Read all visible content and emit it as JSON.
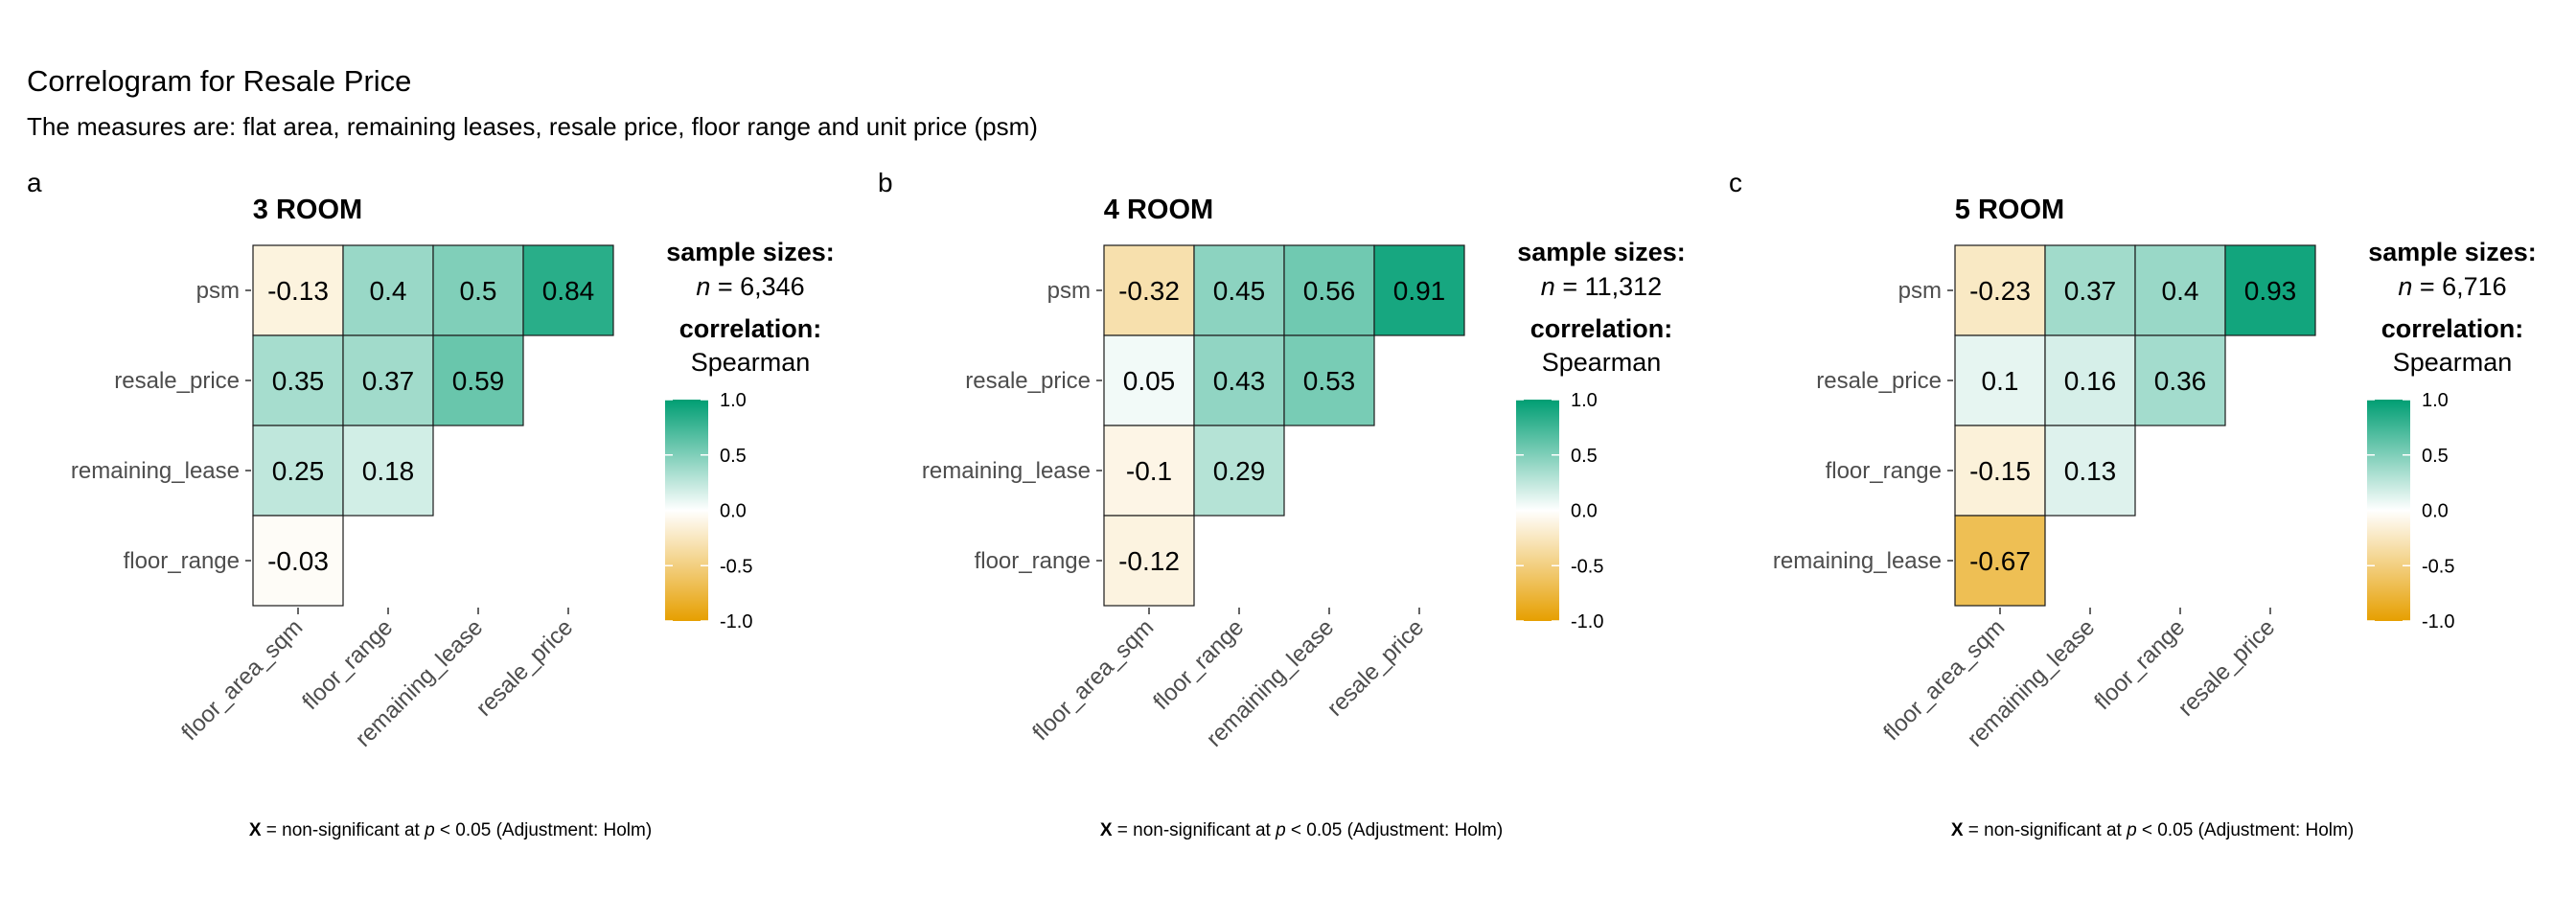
{
  "title": "Correlogram for Resale Price",
  "subtitle": "The measures are: flat area, remaining leases, resale price, floor range and unit price (psm)",
  "colors": {
    "low": "#e69f00",
    "mid": "#ffffff",
    "high": "#009e73"
  },
  "legend_ticks": [
    "1.0",
    "0.5",
    "0.0",
    "-0.5",
    "-1.0"
  ],
  "caption": {
    "bold": "X",
    "before_p": " = non-significant at ",
    "p": "p",
    "after_p": " < 0.05 (Adjustment: Holm)"
  },
  "chart_data": [
    {
      "type": "heatmap",
      "tag": "a",
      "title": "3 ROOM",
      "sample_label": "sample sizes:",
      "n_label": "n",
      "n_value": "= 6,346",
      "corr_label": "correlation:",
      "corr_method": "Spearman",
      "x_categories": [
        "floor_area_sqm",
        "floor_range",
        "remaining_lease",
        "resale_price"
      ],
      "y_categories": [
        "psm",
        "resale_price",
        "remaining_lease",
        "floor_range"
      ],
      "values": [
        [
          -0.13,
          0.4,
          0.5,
          0.84
        ],
        [
          0.35,
          0.37,
          0.59,
          null
        ],
        [
          0.25,
          0.18,
          null,
          null
        ],
        [
          -0.03,
          null,
          null,
          null
        ]
      ],
      "labels": [
        [
          "-0.13",
          "0.4",
          "0.5",
          "0.84"
        ],
        [
          "0.35",
          "0.37",
          "0.59",
          null
        ],
        [
          "0.25",
          "0.18",
          null,
          null
        ],
        [
          "-0.03",
          null,
          null,
          null
        ]
      ]
    },
    {
      "type": "heatmap",
      "tag": "b",
      "title": "4 ROOM",
      "sample_label": "sample sizes:",
      "n_label": "n",
      "n_value": "= 11,312",
      "corr_label": "correlation:",
      "corr_method": "Spearman",
      "x_categories": [
        "floor_area_sqm",
        "floor_range",
        "remaining_lease",
        "resale_price"
      ],
      "y_categories": [
        "psm",
        "resale_price",
        "remaining_lease",
        "floor_range"
      ],
      "values": [
        [
          -0.32,
          0.45,
          0.56,
          0.91
        ],
        [
          0.05,
          0.43,
          0.53,
          null
        ],
        [
          -0.1,
          0.29,
          null,
          null
        ],
        [
          -0.12,
          null,
          null,
          null
        ]
      ],
      "labels": [
        [
          "-0.32",
          "0.45",
          "0.56",
          "0.91"
        ],
        [
          "0.05",
          "0.43",
          "0.53",
          null
        ],
        [
          "-0.1",
          "0.29",
          null,
          null
        ],
        [
          "-0.12",
          null,
          null,
          null
        ]
      ]
    },
    {
      "type": "heatmap",
      "tag": "c",
      "title": "5 ROOM",
      "sample_label": "sample sizes:",
      "n_label": "n",
      "n_value": "= 6,716",
      "corr_label": "correlation:",
      "corr_method": "Spearman",
      "x_categories": [
        "floor_area_sqm",
        "remaining_lease",
        "floor_range",
        "resale_price"
      ],
      "y_categories": [
        "psm",
        "resale_price",
        "floor_range",
        "remaining_lease"
      ],
      "values": [
        [
          -0.23,
          0.37,
          0.4,
          0.93
        ],
        [
          0.1,
          0.16,
          0.36,
          null
        ],
        [
          -0.15,
          0.13,
          null,
          null
        ],
        [
          -0.67,
          null,
          null,
          null
        ]
      ],
      "labels": [
        [
          "-0.23",
          "0.37",
          "0.4",
          "0.93"
        ],
        [
          "0.1",
          "0.16",
          "0.36",
          null
        ],
        [
          "-0.15",
          "0.13",
          null,
          null
        ],
        [
          "-0.67",
          null,
          null,
          null
        ]
      ]
    }
  ]
}
